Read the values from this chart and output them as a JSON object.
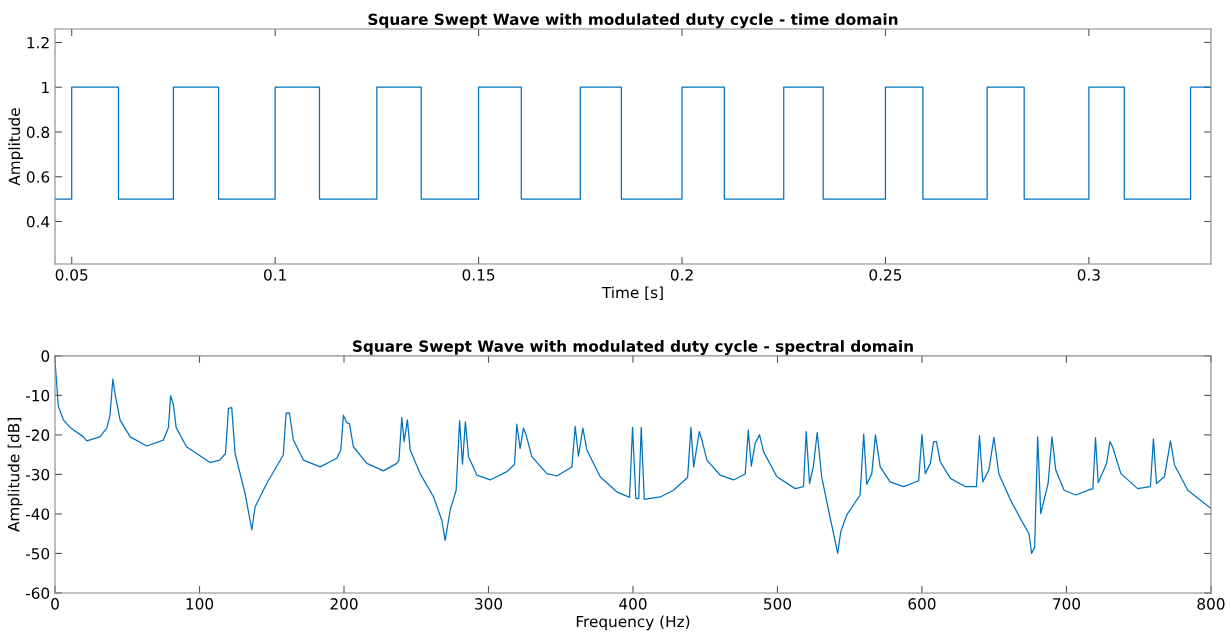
{
  "chart_data": [
    {
      "type": "step",
      "title": "Square Swept Wave with modulated duty cycle - time domain",
      "xlabel": "Time [s]",
      "ylabel": "Amplitude",
      "xlim": [
        0.0459,
        0.33
      ],
      "ylim": [
        0.21,
        1.26
      ],
      "xticks": [
        0.05,
        0.1,
        0.15,
        0.2,
        0.25,
        0.3
      ],
      "yticks": [
        0.4,
        0.6,
        0.8,
        1,
        1.2
      ],
      "grid": false,
      "legend": false,
      "series": [
        {
          "color": "#0072bd",
          "x": [
            0.0459,
            0.05,
            0.0615,
            0.075,
            0.0861,
            0.1,
            0.1109,
            0.125,
            0.1359,
            0.15,
            0.1605,
            0.175,
            0.1851,
            0.2,
            0.2104,
            0.225,
            0.2347,
            0.25,
            0.2592,
            0.275,
            0.2841,
            0.3,
            0.3087,
            0.325,
            0.33
          ],
          "values": [
            0.5,
            1,
            0.5,
            1,
            0.5,
            1,
            0.5,
            1,
            0.5,
            1,
            0.5,
            1,
            0.5,
            1,
            0.5,
            1,
            0.5,
            1,
            0.5,
            1,
            0.5,
            1,
            0.5,
            1,
            1
          ]
        }
      ]
    },
    {
      "type": "line",
      "title": "Square Swept Wave with modulated duty cycle - spectral domain",
      "xlabel": "Frequency (Hz)",
      "ylabel": "Amplitude [dB]",
      "xlim": [
        0,
        800
      ],
      "ylim": [
        -60,
        0
      ],
      "xticks": [
        0,
        100,
        200,
        300,
        400,
        500,
        600,
        700,
        800
      ],
      "yticks": [
        -60,
        -50,
        -40,
        -30,
        -20,
        -10,
        0
      ],
      "grid": false,
      "legend": false,
      "series": [
        {
          "color": "#0072bd",
          "x": [
            0,
            2.3,
            5.8,
            10.4,
            19.6,
            22,
            31,
            35.8,
            38,
            40,
            41.5,
            45,
            52,
            63.5,
            75,
            78.5,
            80,
            82,
            83.8,
            91,
            107.3,
            114,
            118,
            120,
            122.3,
            124.6,
            131.5,
            136.2,
            138.5,
            146.5,
            158,
            159.9,
            162.2,
            165,
            172,
            183.5,
            195,
            197.8,
            199.6,
            202,
            203.8,
            206.5,
            215.8,
            227.3,
            236.5,
            238,
            240,
            241.6,
            243.9,
            245.8,
            252.7,
            262,
            267.7,
            270,
            273.5,
            277.6,
            280,
            282,
            284,
            286.2,
            292,
            301.2,
            312.7,
            318,
            319.6,
            321.9,
            324.2,
            326,
            330,
            340.4,
            347.3,
            357.7,
            360,
            362.3,
            365.3,
            368.1,
            377.3,
            388.8,
            397.6,
            399.7,
            402,
            404,
            405.7,
            407.8,
            418.9,
            428,
            437.8,
            440.1,
            442,
            445.9,
            447.7,
            451.2,
            460.4,
            469.6,
            477.7,
            479.8,
            481.9,
            484.6,
            487.6,
            490.4,
            499.6,
            512.3,
            518,
            519.9,
            522.2,
            524.8,
            527.5,
            530.6,
            536.3,
            541.7,
            543.8,
            547.9,
            557.2,
            559.7,
            561.8,
            565.3,
            567.8,
            571.1,
            578,
            587.3,
            597.7,
            600,
            602.3,
            605.8,
            608.1,
            610,
            612.7,
            619.7,
            630.1,
            637.7,
            639.8,
            642.1,
            646.3,
            649.8,
            653.2,
            661.3,
            669.4,
            674.1,
            675.9,
            678,
            680.1,
            682.2,
            687.3,
            690,
            692.6,
            698.4,
            706.5,
            716.9,
            718.3,
            720.1,
            722,
            727.8,
            730.1,
            731.9,
            737.7,
            749.3,
            758.1,
            760.2,
            762.3,
            767.8,
            772,
            774.8,
            784,
            800
          ],
          "values": [
            -1.4,
            -12.8,
            -16.2,
            -18.1,
            -20.5,
            -21.5,
            -20.5,
            -18.3,
            -15.2,
            -5.9,
            -9.5,
            -16.2,
            -20.5,
            -22.8,
            -21.3,
            -18.1,
            -10.1,
            -12.4,
            -18.1,
            -23,
            -27,
            -26.4,
            -24.7,
            -13.3,
            -13.1,
            -24.7,
            -34.8,
            -44,
            -38.2,
            -32.3,
            -25.1,
            -14.5,
            -14.4,
            -21.3,
            -26.4,
            -28.1,
            -25.9,
            -23.8,
            -15,
            -16.9,
            -17.2,
            -23,
            -27.2,
            -29.1,
            -27.2,
            -26.4,
            -15.6,
            -21.7,
            -16.2,
            -23.8,
            -29.8,
            -35.7,
            -41.6,
            -46.7,
            -39,
            -34,
            -16.4,
            -27.4,
            -16.7,
            -25.5,
            -30.2,
            -31.4,
            -29.3,
            -27.5,
            -17.3,
            -23.4,
            -18.3,
            -20,
            -25.5,
            -29.8,
            -30.4,
            -28.1,
            -17.9,
            -25.4,
            -18.3,
            -23.8,
            -30.6,
            -34.4,
            -35.8,
            -18.1,
            -36.1,
            -36.1,
            -18.1,
            -36.3,
            -35.7,
            -34,
            -30.8,
            -18.1,
            -28.1,
            -19.2,
            -21.3,
            -26.4,
            -30.2,
            -31.4,
            -29.9,
            -18.8,
            -27.9,
            -22.1,
            -20,
            -24.3,
            -30.6,
            -33.6,
            -33.1,
            -19.2,
            -32.3,
            -28.1,
            -19.4,
            -30.6,
            -40.7,
            -49.9,
            -44.5,
            -40.3,
            -35.2,
            -19.8,
            -32.5,
            -29.8,
            -20,
            -28.1,
            -31.9,
            -33.1,
            -31.6,
            -19.9,
            -29.8,
            -27.2,
            -21.7,
            -21.7,
            -26.8,
            -31,
            -33.1,
            -33.1,
            -20.2,
            -31.9,
            -28.9,
            -20.6,
            -29.8,
            -36.5,
            -42,
            -45,
            -50,
            -48.4,
            -20.5,
            -39.9,
            -32.3,
            -20.5,
            -28.9,
            -34,
            -35.2,
            -33.7,
            -33.7,
            -20.7,
            -32.1,
            -27.2,
            -21.7,
            -23,
            -29.8,
            -33.6,
            -33.1,
            -21,
            -32.3,
            -30.6,
            -21.5,
            -27.6,
            -34,
            -38.6
          ]
        }
      ]
    }
  ]
}
